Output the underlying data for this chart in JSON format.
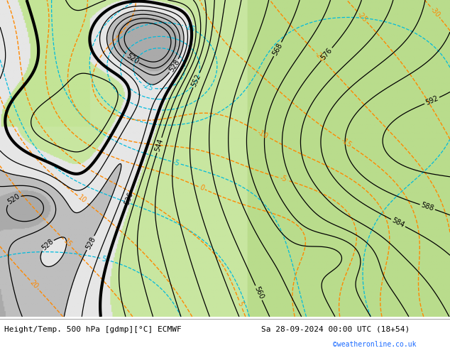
{
  "title_left": "Height/Temp. 500 hPa [gdmp][°C] ECMWF",
  "title_right": "Sa 28-09-2024 00:00 UTC (18+54)",
  "watermark": "©weatheronline.co.uk",
  "bg_color": "#ffffff",
  "map_bg_green": "#c8e6a0",
  "map_bg_gray": "#c8c8c8",
  "map_bg_white": "#f0f0f0",
  "fig_width": 6.34,
  "fig_height": 4.9,
  "dpi": 100,
  "bottom_text_color_left": "#000000",
  "bottom_text_color_right": "#000000",
  "watermark_color": "#1a6aff",
  "bottom_bar_color": "#ffffff",
  "font_size_bottom": 8,
  "font_size_watermark": 7
}
